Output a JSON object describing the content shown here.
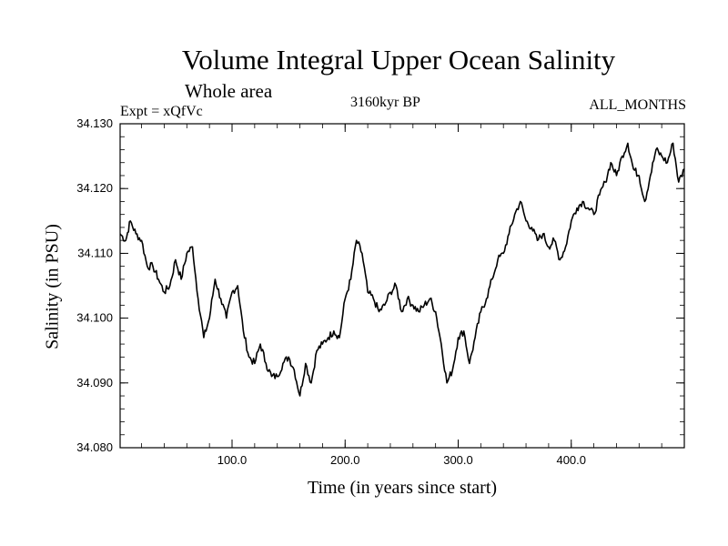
{
  "chart_data": {
    "type": "line",
    "title": "Volume Integral Upper Ocean Salinity",
    "subtitle": "Whole area",
    "experiment": "Expt = xQfVc",
    "period": "3160kyr BP",
    "months": "ALL_MONTHS",
    "xlabel": "Time (in years since start)",
    "ylabel": "Salinity (in PSU)",
    "xlim": [
      1,
      500
    ],
    "ylim": [
      34.08,
      34.13
    ],
    "xticks": [
      100,
      200,
      300,
      400
    ],
    "xtick_labels": [
      "100.0",
      "200.0",
      "300.0",
      "400.0"
    ],
    "yticks": [
      34.08,
      34.09,
      34.1,
      34.11,
      34.12,
      34.13
    ],
    "ytick_labels": [
      "34.080",
      "34.090",
      "34.100",
      "34.110",
      "34.120",
      "34.130"
    ],
    "series": [
      {
        "name": "Salinity",
        "x": [
          1,
          6,
          10,
          15,
          20,
          25,
          30,
          35,
          40,
          45,
          50,
          55,
          60,
          65,
          70,
          75,
          80,
          85,
          90,
          95,
          100,
          105,
          110,
          115,
          120,
          125,
          130,
          135,
          140,
          145,
          150,
          155,
          160,
          165,
          170,
          175,
          180,
          185,
          190,
          195,
          200,
          205,
          210,
          215,
          220,
          225,
          230,
          235,
          240,
          245,
          250,
          255,
          260,
          265,
          270,
          275,
          280,
          285,
          290,
          295,
          300,
          305,
          310,
          315,
          320,
          325,
          330,
          335,
          340,
          345,
          350,
          355,
          360,
          365,
          370,
          375,
          380,
          385,
          390,
          395,
          400,
          405,
          410,
          415,
          420,
          425,
          430,
          435,
          440,
          445,
          450,
          455,
          460,
          465,
          470,
          475,
          480,
          485,
          490,
          495,
          500
        ],
        "values": [
          34.113,
          34.112,
          34.115,
          34.113,
          34.112,
          34.108,
          34.108,
          34.106,
          34.104,
          34.105,
          34.109,
          34.106,
          34.11,
          34.111,
          34.103,
          34.097,
          34.1,
          34.106,
          34.103,
          34.1,
          34.104,
          34.105,
          34.098,
          34.094,
          34.093,
          34.096,
          34.093,
          34.091,
          34.091,
          34.093,
          34.094,
          34.092,
          34.088,
          34.093,
          34.09,
          34.095,
          34.096,
          34.097,
          34.098,
          34.097,
          34.103,
          34.106,
          34.112,
          34.11,
          34.104,
          34.103,
          34.101,
          34.102,
          34.104,
          34.105,
          34.101,
          34.103,
          34.102,
          34.101,
          34.102,
          34.103,
          34.101,
          34.096,
          34.09,
          34.092,
          34.097,
          34.098,
          34.093,
          34.097,
          34.101,
          34.103,
          34.106,
          34.109,
          34.11,
          34.113,
          34.116,
          34.118,
          34.115,
          34.114,
          34.112,
          34.113,
          34.111,
          34.112,
          34.109,
          34.111,
          34.115,
          34.117,
          34.118,
          34.117,
          34.116,
          34.119,
          34.121,
          34.124,
          34.122,
          34.125,
          34.127,
          34.123,
          34.122,
          34.118,
          34.122,
          34.126,
          34.125,
          34.124,
          34.127,
          34.121,
          34.123
        ]
      }
    ]
  }
}
